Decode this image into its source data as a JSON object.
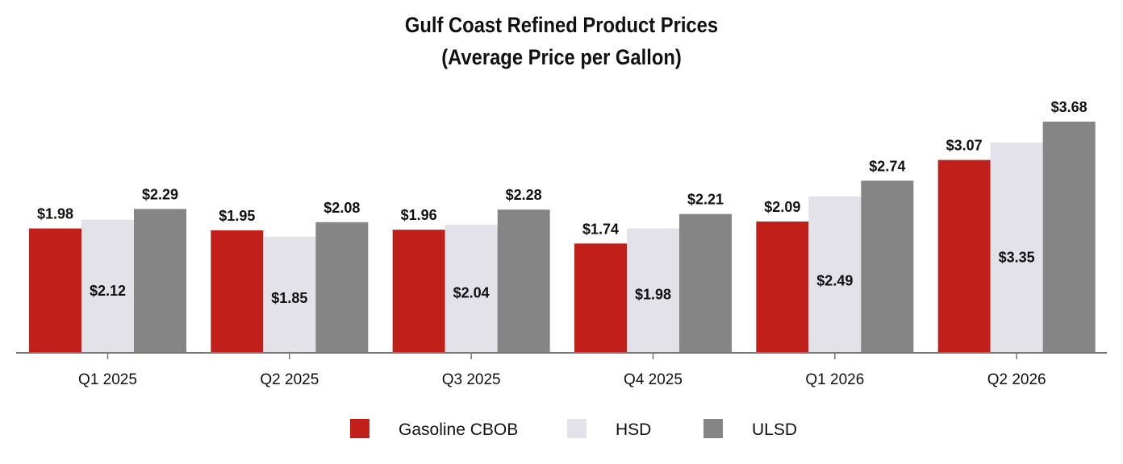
{
  "colors": {
    "gasoline": "#c1201a",
    "hsd": "#e2e2e8",
    "ulsd": "#858585",
    "axis": "#777777"
  },
  "chart_data": {
    "type": "bar",
    "title": "Gulf Coast Refined Product Prices",
    "subtitle": "(Average Price per Gallon)",
    "categories": [
      "Q1 2025",
      "Q2 2025",
      "Q3 2025",
      "Q4 2025",
      "Q1 2026",
      "Q2 2026"
    ],
    "series": [
      {
        "name": "Gasoline CBOB",
        "values": [
          1.98,
          1.95,
          1.96,
          1.74,
          2.09,
          3.07
        ],
        "labels": [
          "$1.98",
          "$1.95",
          "$1.96",
          "$1.74",
          "$2.09",
          "$3.07"
        ],
        "label_position": "above",
        "color": "#c1201a"
      },
      {
        "name": "HSD",
        "values": [
          2.12,
          1.85,
          2.04,
          1.98,
          2.49,
          3.35
        ],
        "labels": [
          "$2.12",
          "$1.85",
          "$2.04",
          "$1.98",
          "$2.49",
          "$3.35"
        ],
        "label_position": "inside",
        "color": "#e2e2e8"
      },
      {
        "name": "ULSD",
        "values": [
          2.29,
          2.08,
          2.28,
          2.21,
          2.74,
          3.68
        ],
        "labels": [
          "$2.29",
          "$2.08",
          "$2.28",
          "$2.21",
          "$2.74",
          "$3.68"
        ],
        "label_position": "above",
        "color": "#858585"
      }
    ],
    "ylim": [
      0.0,
      3.7
    ],
    "grid": false,
    "legend_position": "bottom"
  }
}
